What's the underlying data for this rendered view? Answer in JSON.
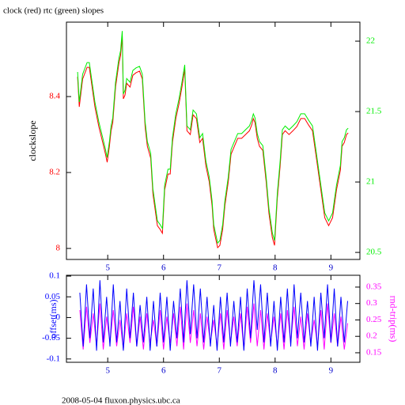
{
  "chart_data": [
    {
      "type": "line",
      "title": "clock (red) rtc (green) slopes",
      "ylabel": "clockslope",
      "x": [
        4.46,
        4.49,
        4.55,
        4.63,
        4.67,
        4.72,
        4.77,
        4.84,
        4.91,
        4.96,
        4.99,
        5.03,
        5.06,
        5.09,
        5.14,
        5.17,
        5.2,
        5.23,
        5.26,
        5.28,
        5.31,
        5.34,
        5.4,
        5.45,
        5.51,
        5.57,
        5.62,
        5.67,
        5.71,
        5.77,
        5.81,
        5.85,
        5.89,
        5.94,
        5.98,
        6.02,
        6.08,
        6.12,
        6.16,
        6.22,
        6.28,
        6.33,
        6.38,
        6.42,
        6.48,
        6.53,
        6.59,
        6.65,
        6.7,
        6.76,
        6.82,
        6.87,
        6.9,
        6.93,
        6.97,
        7.01,
        7.06,
        7.1,
        7.16,
        7.21,
        7.27,
        7.33,
        7.4,
        7.47,
        7.54,
        7.58,
        7.61,
        7.64,
        7.68,
        7.72,
        7.78,
        7.84,
        7.89,
        7.95,
        7.99,
        8.04,
        8.09,
        8.13,
        8.18,
        8.25,
        8.32,
        8.39,
        8.46,
        8.53,
        8.6,
        8.67,
        8.74,
        8.82,
        8.89,
        8.96,
        9.03,
        9.1,
        9.17,
        9.2,
        9.24,
        9.28,
        9.31
      ],
      "xlim": [
        4.26,
        9.52
      ],
      "xticks": [
        5,
        6,
        7,
        8,
        9
      ],
      "ylim": [
        7.971,
        8.596
      ],
      "yticks": [
        8,
        8.2,
        8.4
      ],
      "y2lim": [
        20.45,
        22.135
      ],
      "y2ticks": [
        20.5,
        21,
        21.5,
        22
      ],
      "series": [
        {
          "color": "#ff0000",
          "axis": "y",
          "values": [
            8.452,
            8.373,
            8.446,
            8.477,
            8.477,
            8.425,
            8.373,
            8.321,
            8.279,
            8.248,
            8.227,
            8.269,
            8.31,
            8.331,
            8.425,
            8.456,
            8.488,
            8.508,
            8.56,
            8.394,
            8.404,
            8.435,
            8.425,
            8.456,
            8.463,
            8.467,
            8.446,
            8.321,
            8.269,
            8.238,
            8.144,
            8.102,
            8.06,
            8.05,
            8.04,
            8.154,
            8.196,
            8.196,
            8.279,
            8.342,
            8.383,
            8.425,
            8.471,
            8.31,
            8.3,
            8.352,
            8.342,
            8.279,
            8.29,
            8.217,
            8.175,
            8.113,
            8.05,
            8.029,
            8.002,
            8.008,
            8.05,
            8.113,
            8.175,
            8.248,
            8.269,
            8.29,
            8.29,
            8.3,
            8.31,
            8.325,
            8.342,
            8.331,
            8.29,
            8.269,
            8.258,
            8.175,
            8.092,
            8.029,
            8.008,
            8.133,
            8.217,
            8.3,
            8.31,
            8.3,
            8.31,
            8.321,
            8.342,
            8.342,
            8.325,
            8.31,
            8.238,
            8.154,
            8.081,
            8.06,
            8.081,
            8.154,
            8.206,
            8.269,
            8.279,
            8.3,
            8.304
          ]
        },
        {
          "color": "#00ee00",
          "axis": "y2",
          "values": [
            21.781,
            21.568,
            21.765,
            21.848,
            21.848,
            21.708,
            21.568,
            21.428,
            21.314,
            21.231,
            21.174,
            21.287,
            21.398,
            21.455,
            21.708,
            21.792,
            21.878,
            21.932,
            22.072,
            21.625,
            21.652,
            21.735,
            21.708,
            21.792,
            21.811,
            21.821,
            21.765,
            21.428,
            21.287,
            21.204,
            20.95,
            20.837,
            20.724,
            20.697,
            20.67,
            20.977,
            21.091,
            21.091,
            21.314,
            21.484,
            21.595,
            21.708,
            21.832,
            21.398,
            21.371,
            21.511,
            21.484,
            21.314,
            21.344,
            21.147,
            21.034,
            20.867,
            20.697,
            20.64,
            20.567,
            20.584,
            20.697,
            20.867,
            21.034,
            21.231,
            21.287,
            21.344,
            21.344,
            21.371,
            21.398,
            21.439,
            21.484,
            21.455,
            21.344,
            21.287,
            21.258,
            21.034,
            20.81,
            20.64,
            20.584,
            20.921,
            21.147,
            21.371,
            21.398,
            21.371,
            21.398,
            21.428,
            21.484,
            21.484,
            21.439,
            21.398,
            21.204,
            20.977,
            20.78,
            20.724,
            20.78,
            20.977,
            21.118,
            21.287,
            21.314,
            21.371,
            21.382
          ]
        }
      ]
    },
    {
      "type": "line",
      "ylabel": "offset(ms)",
      "y2label": "rnd-trip(ms)",
      "x": [
        4.5,
        4.56,
        4.62,
        4.68,
        4.74,
        4.8,
        4.86,
        4.92,
        4.98,
        5.04,
        5.1,
        5.16,
        5.22,
        5.28,
        5.34,
        5.4,
        5.46,
        5.52,
        5.58,
        5.64,
        5.7,
        5.76,
        5.82,
        5.88,
        5.94,
        6,
        6.06,
        6.12,
        6.18,
        6.24,
        6.3,
        6.36,
        6.42,
        6.48,
        6.54,
        6.6,
        6.66,
        6.72,
        6.78,
        6.84,
        6.9,
        6.96,
        7.02,
        7.08,
        7.14,
        7.2,
        7.26,
        7.32,
        7.38,
        7.44,
        7.5,
        7.56,
        7.62,
        7.68,
        7.74,
        7.8,
        7.86,
        7.92,
        7.98,
        8.04,
        8.1,
        8.16,
        8.22,
        8.28,
        8.34,
        8.4,
        8.46,
        8.52,
        8.58,
        8.64,
        8.7,
        8.76,
        8.82,
        8.88,
        8.94,
        9,
        9.06,
        9.12,
        9.18,
        9.24,
        9.3
      ],
      "xlim": [
        4.26,
        9.52
      ],
      "xticks": [
        5,
        6,
        7,
        8,
        9
      ],
      "ylim": [
        -0.108,
        0.102
      ],
      "yticks": [
        -0.1,
        -0.05,
        0,
        0.05,
        0.1
      ],
      "y2lim": [
        0.121,
        0.386
      ],
      "y2ticks": [
        0.15,
        0.2,
        0.25,
        0.3,
        0.35
      ],
      "series": [
        {
          "color": "#ff00ff",
          "axis": "y2",
          "values": [
            0.28,
            0.16,
            0.29,
            0.18,
            0.27,
            0.17,
            0.3,
            0.16,
            0.26,
            0.18,
            0.28,
            0.17,
            0.25,
            0.16,
            0.27,
            0.18,
            0.29,
            0.17,
            0.26,
            0.16,
            0.27,
            0.18,
            0.25,
            0.17,
            0.28,
            0.16,
            0.26,
            0.18,
            0.27,
            0.17,
            0.29,
            0.16,
            0.3,
            0.18,
            0.28,
            0.17,
            0.27,
            0.16,
            0.26,
            0.18,
            0.25,
            0.17,
            0.27,
            0.16,
            0.28,
            0.18,
            0.26,
            0.17,
            0.27,
            0.16,
            0.29,
            0.18,
            0.3,
            0.17,
            0.28,
            0.16,
            0.27,
            0.18,
            0.26,
            0.17,
            0.27,
            0.16,
            0.28,
            0.18,
            0.29,
            0.17,
            0.26,
            0.16,
            0.27,
            0.18,
            0.25,
            0.17,
            0.28,
            0.16,
            0.3,
            0.18,
            0.27,
            0.17,
            0.26,
            0.16,
            0.24
          ]
        },
        {
          "color": "#0000ff",
          "axis": "y",
          "values": [
            0.06,
            -0.07,
            0.08,
            -0.05,
            0.07,
            -0.08,
            0.09,
            -0.06,
            0.05,
            -0.07,
            0.08,
            -0.06,
            0.04,
            -0.08,
            0.07,
            -0.05,
            0.06,
            -0.07,
            0.03,
            -0.06,
            0.05,
            -0.08,
            0.04,
            -0.07,
            0.06,
            -0.06,
            0.05,
            -0.08,
            0.04,
            -0.05,
            0.07,
            -0.06,
            0.09,
            -0.04,
            0.08,
            -0.05,
            0.07,
            -0.06,
            0.05,
            -0.07,
            0.03,
            -0.08,
            0.05,
            -0.06,
            0.06,
            -0.07,
            0.04,
            -0.06,
            0.05,
            -0.08,
            0.07,
            -0.05,
            0.09,
            -0.03,
            0.08,
            -0.06,
            0.06,
            -0.07,
            0.04,
            -0.08,
            0.05,
            -0.06,
            0.07,
            -0.07,
            0.08,
            -0.05,
            0.06,
            -0.06,
            0.04,
            -0.07,
            0.05,
            -0.08,
            0.06,
            -0.05,
            0.08,
            -0.06,
            0.07,
            -0.07,
            0.05,
            -0.06,
            0.04
          ]
        }
      ]
    }
  ],
  "footer": "2008-05-04 fluxon.physics.ubc.ca"
}
